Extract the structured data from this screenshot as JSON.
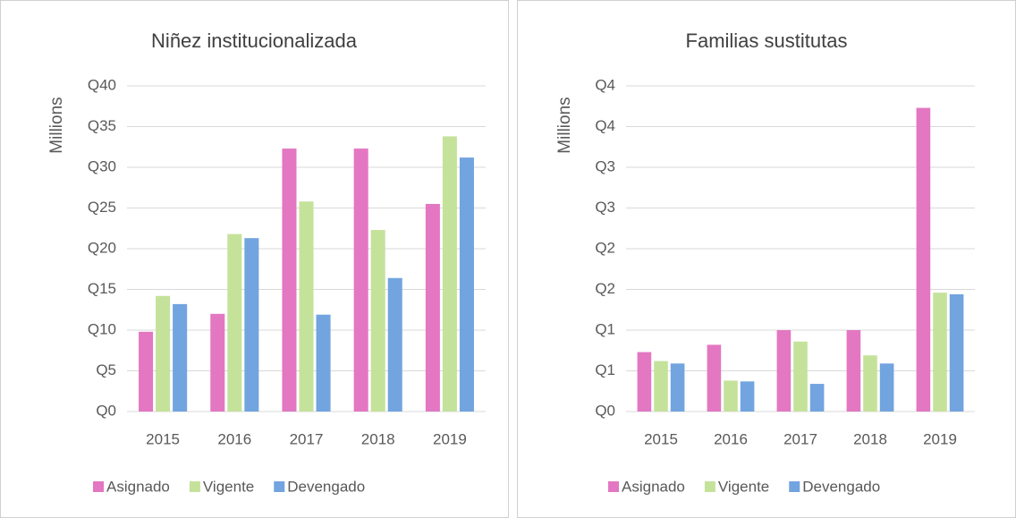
{
  "chart_data": [
    {
      "type": "bar",
      "title": "Niñez institucionalizada",
      "y_label": "Millions",
      "categories": [
        "2015",
        "2016",
        "2017",
        "2018",
        "2019"
      ],
      "series": [
        {
          "name": "Asignado",
          "color": "#e377c2",
          "values": [
            9.8,
            12.0,
            32.3,
            32.3,
            25.5
          ]
        },
        {
          "name": "Vigente",
          "color": "#c5e29b",
          "values": [
            14.2,
            21.8,
            25.8,
            22.3,
            33.8
          ]
        },
        {
          "name": "Devengado",
          "color": "#72a4df",
          "values": [
            13.2,
            21.3,
            11.9,
            16.4,
            31.2
          ]
        }
      ],
      "ylim": [
        0,
        40
      ],
      "yticks": [
        {
          "value": 0,
          "label": "Q0"
        },
        {
          "value": 5,
          "label": "Q5"
        },
        {
          "value": 10,
          "label": "Q10"
        },
        {
          "value": 15,
          "label": "Q15"
        },
        {
          "value": 20,
          "label": "Q20"
        },
        {
          "value": 25,
          "label": "Q25"
        },
        {
          "value": 30,
          "label": "Q30"
        },
        {
          "value": 35,
          "label": "Q35"
        },
        {
          "value": 40,
          "label": "Q40"
        }
      ],
      "grid": true,
      "legend": "bottom"
    },
    {
      "type": "bar",
      "title": "Familias sustitutas",
      "y_label": "Millions",
      "categories": [
        "2015",
        "2016",
        "2017",
        "2018",
        "2019"
      ],
      "series": [
        {
          "name": "Asignado",
          "color": "#e377c2",
          "values": [
            0.73,
            0.82,
            1.0,
            1.0,
            3.73
          ]
        },
        {
          "name": "Vigente",
          "color": "#c5e29b",
          "values": [
            0.62,
            0.38,
            0.86,
            0.69,
            1.46
          ]
        },
        {
          "name": "Devengado",
          "color": "#72a4df",
          "values": [
            0.59,
            0.37,
            0.34,
            0.59,
            1.44
          ]
        }
      ],
      "ylim": [
        0,
        4
      ],
      "yticks": [
        {
          "value": 0,
          "label": "Q0"
        },
        {
          "value": 0.5,
          "label": "Q1"
        },
        {
          "value": 1,
          "label": "Q1"
        },
        {
          "value": 1.5,
          "label": "Q2"
        },
        {
          "value": 2,
          "label": "Q2"
        },
        {
          "value": 2.5,
          "label": "Q3"
        },
        {
          "value": 3,
          "label": "Q3"
        },
        {
          "value": 3.5,
          "label": "Q4"
        },
        {
          "value": 4,
          "label": "Q4"
        }
      ],
      "grid": true,
      "legend": "bottom"
    }
  ]
}
